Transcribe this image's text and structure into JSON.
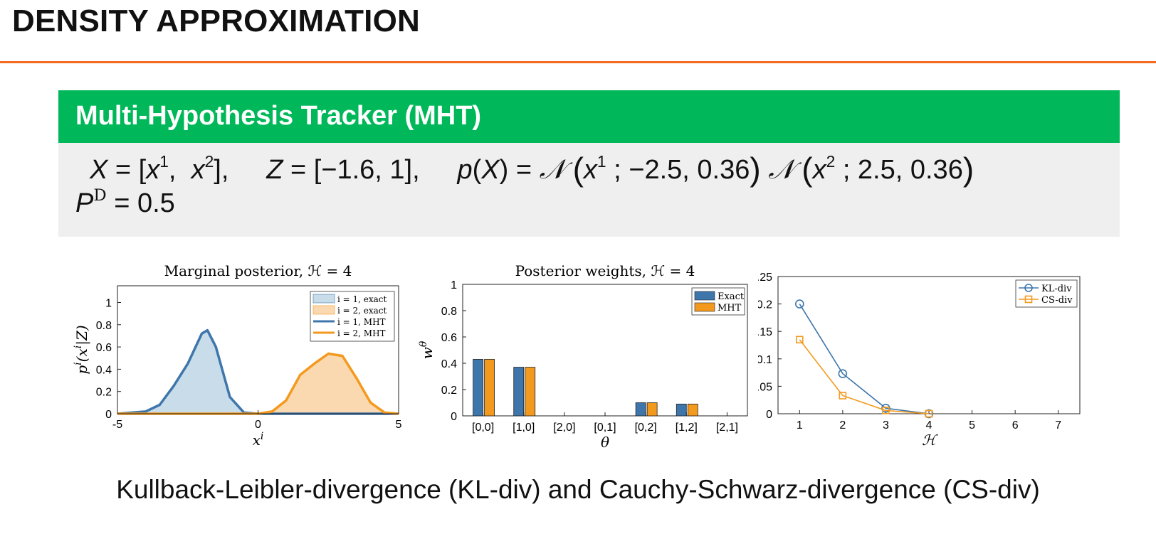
{
  "slide": {
    "title": "DENSITY APPROXIMATION",
    "accent_color": "#f26b21",
    "block_title": "Multi-Hypothesis Tracker (MHT)",
    "block_color": "#00b859",
    "caption": "Kullback-Leibler-divergence (KL-div) and Cauchy-Schwarz-divergence (CS-div)"
  },
  "equations": {
    "X_def": "= [",
    "Z_def": "= [−1.6,  1],",
    "p_def": "=",
    "x1_params": "; −2.5, 0.36",
    "x2_params": "; 2.5, 0.36",
    "pd_value": "= 0.5"
  },
  "chart_data": [
    {
      "type": "area",
      "title": "Marginal posterior, ℋ = 4",
      "xlabel": "x^i",
      "ylabel": "p^i(x^i|Z)",
      "xlim": [
        -5,
        5
      ],
      "ylim": [
        0,
        1.15
      ],
      "xticks": [
        "-5",
        "0",
        "5"
      ],
      "yticks": [
        "0",
        "0.2",
        "0.4",
        "0.6",
        "0.8",
        "1"
      ],
      "legend_position": "top-right",
      "x": [
        -5,
        -4,
        -3.5,
        -3,
        -2.5,
        -2,
        -1.8,
        -1.5,
        -1,
        -0.5,
        0,
        0.5,
        1,
        1.5,
        2,
        2.5,
        3,
        3.5,
        4,
        4.5,
        5
      ],
      "series": [
        {
          "name": "i = 1, exact",
          "style": "fill",
          "color": "#c9dcea",
          "values": [
            0,
            0.02,
            0.08,
            0.25,
            0.45,
            0.72,
            0.75,
            0.6,
            0.15,
            0.01,
            0,
            0,
            0,
            0,
            0,
            0,
            0,
            0,
            0,
            0,
            0
          ]
        },
        {
          "name": "i = 2, exact",
          "style": "fill",
          "color": "#fbd9b0",
          "values": [
            0,
            0,
            0,
            0,
            0,
            0,
            0,
            0,
            0,
            0,
            0,
            0.02,
            0.12,
            0.35,
            0.45,
            0.54,
            0.52,
            0.32,
            0.1,
            0.01,
            0
          ]
        },
        {
          "name": "i = 1, MHT",
          "style": "line",
          "color": "#3e76ab",
          "values": [
            0,
            0.02,
            0.08,
            0.25,
            0.45,
            0.72,
            0.75,
            0.6,
            0.15,
            0.01,
            0,
            0,
            0,
            0,
            0,
            0,
            0,
            0,
            0,
            0,
            0
          ]
        },
        {
          "name": "i = 2, MHT",
          "style": "line",
          "color": "#f39a1e",
          "values": [
            0,
            0,
            0,
            0,
            0,
            0,
            0,
            0,
            0,
            0,
            0,
            0.02,
            0.12,
            0.35,
            0.45,
            0.54,
            0.52,
            0.32,
            0.1,
            0.01,
            0
          ]
        }
      ]
    },
    {
      "type": "bar",
      "title": "Posterior weights, ℋ = 4",
      "xlabel": "θ",
      "ylabel": "w^θ",
      "ylim": [
        0,
        1
      ],
      "yticks": [
        "0",
        "0.2",
        "0.4",
        "0.6",
        "0.8",
        "1"
      ],
      "legend_position": "top-right",
      "categories": [
        "[0,0]",
        "[1,0]",
        "[2,0]",
        "[0,1]",
        "[0,2]",
        "[1,2]",
        "[2,1]"
      ],
      "series": [
        {
          "name": "Exact",
          "color": "#3e76ab",
          "values": [
            0.43,
            0.37,
            0,
            0,
            0.1,
            0.09,
            0
          ]
        },
        {
          "name": "MHT",
          "color": "#f39a1e",
          "values": [
            0.43,
            0.37,
            0,
            0,
            0.1,
            0.09,
            0
          ]
        }
      ]
    },
    {
      "type": "line",
      "title": "",
      "xlabel": "ℋ",
      "ylabel": "",
      "xlim": [
        0.5,
        7.5
      ],
      "ylim": [
        0,
        0.25
      ],
      "xticks": [
        "1",
        "2",
        "3",
        "4",
        "5",
        "6",
        "7"
      ],
      "yticks": [
        "0",
        "0.05",
        "0.1",
        "0.15",
        "0.2",
        "0.25"
      ],
      "legend_position": "top-right",
      "x": [
        1,
        2,
        3,
        4
      ],
      "series": [
        {
          "name": "KL-div",
          "marker": "circle",
          "color": "#3e76ab",
          "values": [
            0.2,
            0.073,
            0.01,
            0
          ]
        },
        {
          "name": "CS-div",
          "marker": "square",
          "color": "#f39a1e",
          "values": [
            0.135,
            0.033,
            0.006,
            0
          ]
        }
      ]
    }
  ]
}
